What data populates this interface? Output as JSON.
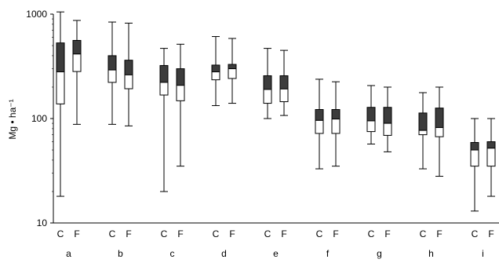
{
  "chart_data": {
    "type": "boxplot",
    "ylabel": "Mg • ha⁻¹",
    "yscale": "log",
    "ylim": [
      10,
      1000
    ],
    "yticks": [
      "1000",
      "100",
      "10"
    ],
    "yticks_values": [
      1000,
      100,
      10
    ],
    "grid": false,
    "legend": "none",
    "colors": {
      "upper_box": "#3c3c3c",
      "lower_box": "#ffffff",
      "stroke": "#000000"
    },
    "groups": [
      {
        "group": "a",
        "boxes": [
          {
            "label": "C",
            "min": 18,
            "q1": 138,
            "median": 280,
            "q3": 530,
            "max": 1050
          },
          {
            "label": "F",
            "min": 88,
            "q1": 282,
            "median": 415,
            "q3": 560,
            "max": 870
          }
        ]
      },
      {
        "group": "b",
        "boxes": [
          {
            "label": "C",
            "min": 88,
            "q1": 222,
            "median": 292,
            "q3": 400,
            "max": 840
          },
          {
            "label": "F",
            "min": 85,
            "q1": 193,
            "median": 262,
            "q3": 362,
            "max": 820
          }
        ]
      },
      {
        "group": "c",
        "boxes": [
          {
            "label": "C",
            "min": 20,
            "q1": 168,
            "median": 222,
            "q3": 322,
            "max": 470
          },
          {
            "label": "F",
            "min": 35,
            "q1": 148,
            "median": 208,
            "q3": 300,
            "max": 515
          }
        ]
      },
      {
        "group": "d",
        "boxes": [
          {
            "label": "C",
            "min": 133,
            "q1": 235,
            "median": 280,
            "q3": 325,
            "max": 610
          },
          {
            "label": "F",
            "min": 140,
            "q1": 242,
            "median": 300,
            "q3": 330,
            "max": 585
          }
        ]
      },
      {
        "group": "e",
        "boxes": [
          {
            "label": "C",
            "min": 100,
            "q1": 140,
            "median": 190,
            "q3": 257,
            "max": 470
          },
          {
            "label": "F",
            "min": 107,
            "q1": 145,
            "median": 192,
            "q3": 257,
            "max": 450
          }
        ]
      },
      {
        "group": "f",
        "boxes": [
          {
            "label": "C",
            "min": 33,
            "q1": 72,
            "median": 96,
            "q3": 122,
            "max": 238
          },
          {
            "label": "F",
            "min": 35,
            "q1": 72,
            "median": 99,
            "q3": 122,
            "max": 225
          }
        ]
      },
      {
        "group": "g",
        "boxes": [
          {
            "label": "C",
            "min": 57,
            "q1": 75,
            "median": 95,
            "q3": 128,
            "max": 207
          },
          {
            "label": "F",
            "min": 48,
            "q1": 69,
            "median": 90,
            "q3": 128,
            "max": 200
          }
        ]
      },
      {
        "group": "h",
        "boxes": [
          {
            "label": "C",
            "min": 33,
            "q1": 70,
            "median": 77,
            "q3": 113,
            "max": 177
          },
          {
            "label": "F",
            "min": 28,
            "q1": 67,
            "median": 82,
            "q3": 126,
            "max": 200
          }
        ]
      },
      {
        "group": "i",
        "boxes": [
          {
            "label": "C",
            "min": 13,
            "q1": 35,
            "median": 50,
            "q3": 59,
            "max": 100
          },
          {
            "label": "F",
            "min": 18,
            "q1": 35,
            "median": 52,
            "q3": 60,
            "max": 100
          }
        ]
      }
    ]
  }
}
